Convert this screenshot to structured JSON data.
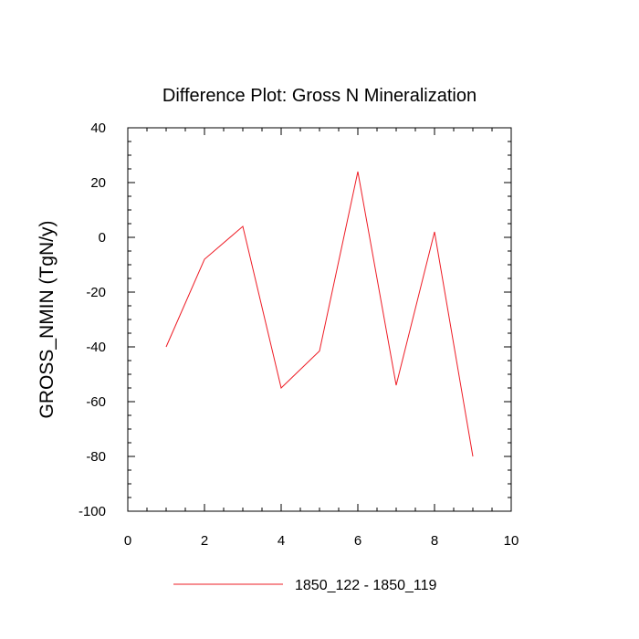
{
  "chart_data": {
    "type": "line",
    "title": "Difference Plot: Gross N Mineralization",
    "xlabel": "",
    "ylabel": "GROSS_NMIN  (TgN/y)",
    "xlim": [
      0,
      10
    ],
    "ylim": [
      -100,
      40
    ],
    "xticks": [
      0,
      2,
      4,
      6,
      8,
      10
    ],
    "xtick_labels": [
      "0",
      "2",
      "4",
      "6",
      "8",
      "10"
    ],
    "yticks": [
      -100,
      -80,
      -60,
      -40,
      -20,
      0,
      20,
      40
    ],
    "ytick_labels": [
      "-100",
      "-80",
      "-60",
      "-40",
      "-20",
      "0",
      "20",
      "40"
    ],
    "grid": false,
    "legend_position": "bottom-center",
    "series": [
      {
        "name": "1850_122 - 1850_119",
        "color": "#ee1c25",
        "x": [
          1,
          2,
          3,
          4,
          5,
          6,
          7,
          8,
          9
        ],
        "y": [
          -40,
          -8,
          4,
          -55,
          -41.5,
          24,
          -54,
          2,
          -80
        ]
      }
    ]
  }
}
